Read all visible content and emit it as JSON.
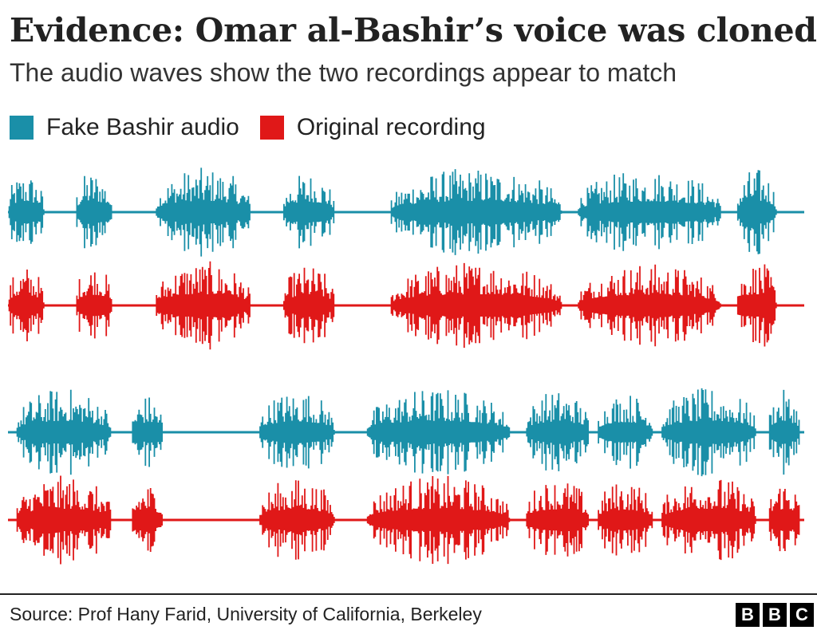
{
  "title": "Evidence: Omar al-Bashir’s voice was cloned",
  "subtitle": "The audio waves show the two recordings appear to match",
  "legend": {
    "fake_label": "Fake Bashir audio",
    "original_label": "Original recording"
  },
  "colors": {
    "fake": "#1a8fa8",
    "original": "#e01818"
  },
  "source": "Source: Prof Hany Farid, University of California, Berkeley",
  "logo": [
    "B",
    "B",
    "C"
  ],
  "chart_data": {
    "type": "area",
    "title": "Evidence: Omar al-Bashir’s voice was cloned",
    "subtitle": "The audio waves show the two recordings appear to match",
    "grid": false,
    "legend_placement": "top-left",
    "series": [
      {
        "name": "Fake Bashir audio"
      },
      {
        "name": "Original recording"
      }
    ],
    "segments": [
      {
        "fake_bursts": [
          [
            0.0,
            0.045,
            0.9
          ],
          [
            0.085,
            0.13,
            0.95
          ],
          [
            0.185,
            0.305,
            1.0
          ],
          [
            0.345,
            0.41,
            0.9
          ],
          [
            0.48,
            0.695,
            1.0
          ],
          [
            0.715,
            0.895,
            0.95
          ],
          [
            0.915,
            0.965,
            1.0
          ]
        ],
        "original_bursts": [
          [
            0.0,
            0.045,
            0.9
          ],
          [
            0.085,
            0.13,
            0.95
          ],
          [
            0.185,
            0.305,
            1.0
          ],
          [
            0.345,
            0.41,
            0.9
          ],
          [
            0.48,
            0.695,
            1.0
          ],
          [
            0.715,
            0.895,
            0.95
          ],
          [
            0.915,
            0.965,
            1.0
          ]
        ]
      },
      {
        "fake_bursts": [
          [
            0.01,
            0.13,
            1.0
          ],
          [
            0.155,
            0.195,
            0.85
          ],
          [
            0.315,
            0.41,
            0.95
          ],
          [
            0.45,
            0.63,
            1.0
          ],
          [
            0.65,
            0.73,
            0.95
          ],
          [
            0.74,
            0.81,
            0.9
          ],
          [
            0.82,
            0.94,
            1.0
          ],
          [
            0.955,
            0.995,
            0.95
          ]
        ],
        "original_bursts": [
          [
            0.01,
            0.13,
            1.0
          ],
          [
            0.155,
            0.195,
            0.85
          ],
          [
            0.315,
            0.41,
            0.95
          ],
          [
            0.45,
            0.63,
            1.0
          ],
          [
            0.65,
            0.73,
            0.95
          ],
          [
            0.74,
            0.81,
            0.9
          ],
          [
            0.82,
            0.94,
            1.0
          ],
          [
            0.955,
            0.995,
            0.95
          ]
        ]
      }
    ]
  }
}
